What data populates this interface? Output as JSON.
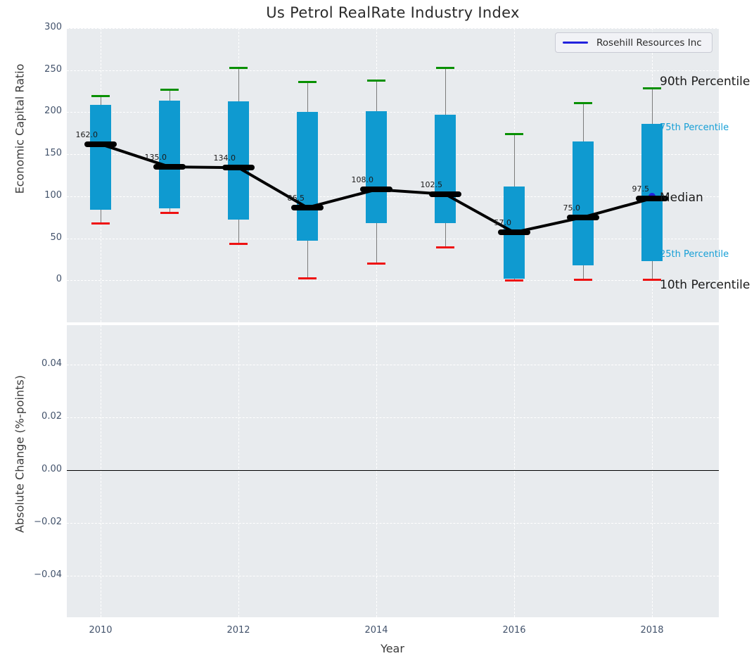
{
  "title": "Us Petrol RealRate Industry Index",
  "legend": {
    "label": "Rosehill Resources Inc"
  },
  "colors": {
    "axes_background": "#e8ebee",
    "grid": "#ffffff",
    "bar": "#0f9ad0",
    "whisker": "#7b7b7b",
    "cap_high": "#089000",
    "cap_low": "#ee1111",
    "median": "#000000",
    "rosehill_blue": "#2222dd",
    "tick_text": "#42526b",
    "cyan_label": "#169fd6",
    "dark_label": "#1a1a1a"
  },
  "chart_data": [
    {
      "type": "bar",
      "subtype": "percentile-box-bars-with-median-line",
      "title": "Us Petrol RealRate Industry Index",
      "ylabel": "Economic Capital Ratio",
      "ylim": [
        -50,
        300
      ],
      "grid": true,
      "legend_position": "upper right",
      "x": [
        2010,
        2011,
        2012,
        2013,
        2014,
        2015,
        2016,
        2017,
        2018
      ],
      "series": [
        {
          "name": "90th Percentile",
          "values": [
            219,
            227,
            253,
            236,
            238,
            253,
            174,
            211,
            228
          ]
        },
        {
          "name": "75th Percentile",
          "values": [
            209,
            214,
            213,
            200,
            201,
            197,
            112,
            165,
            186
          ]
        },
        {
          "name": "Median",
          "values": [
            162,
            135,
            134,
            86.5,
            108,
            102.5,
            57,
            75,
            97.5
          ]
        },
        {
          "name": "25th Percentile",
          "values": [
            84,
            86,
            72,
            47,
            68,
            68,
            2,
            18,
            23
          ]
        },
        {
          "name": "10th Percentile",
          "values": [
            68,
            80,
            43,
            2,
            20,
            39,
            0,
            1,
            1
          ]
        }
      ],
      "median_labels": [
        "162.0",
        "135.0",
        "134.0",
        "86.5",
        "108.0",
        "102.5",
        "57.0",
        "75.0",
        "97.5"
      ],
      "rosehill_point": {
        "x": 2018,
        "y": 100
      },
      "yticks": [
        {
          "v": 300,
          "label": "300"
        },
        {
          "v": 250,
          "label": "250"
        },
        {
          "v": 200,
          "label": "200"
        },
        {
          "v": 150,
          "label": "150"
        },
        {
          "v": 100,
          "label": "100"
        },
        {
          "v": 50,
          "label": "50"
        },
        {
          "v": 0,
          "label": "0"
        }
      ],
      "percentile_labels": [
        {
          "text": "90th Percentile",
          "style": "lg",
          "value": 228,
          "dy": -9
        },
        {
          "text": "75th Percentile",
          "style": "sm",
          "value": 186,
          "dy": 7
        },
        {
          "text": "Median",
          "style": "lg",
          "value": 97.5,
          "dy": 0
        },
        {
          "text": "25th Percentile",
          "style": "sm",
          "value": 23,
          "dy": -8
        },
        {
          "text": "10th Percentile",
          "style": "lg",
          "value": 1,
          "dy": 9
        }
      ]
    },
    {
      "type": "line",
      "ylabel": "Absolute Change (%-points)",
      "xlabel": "Year",
      "ylim": [
        -0.0556,
        0.0548
      ],
      "grid": true,
      "zero_line": 0,
      "series": [],
      "yticks": [
        {
          "v": 0.04,
          "label": "0.04"
        },
        {
          "v": 0.02,
          "label": "0.02"
        },
        {
          "v": 0.0,
          "label": "0.00"
        },
        {
          "v": -0.02,
          "label": "−0.02"
        },
        {
          "v": -0.04,
          "label": "−0.04"
        }
      ],
      "xticks": [
        {
          "v": 2010,
          "label": "2010"
        },
        {
          "v": 2012,
          "label": "2012"
        },
        {
          "v": 2014,
          "label": "2014"
        },
        {
          "v": 2016,
          "label": "2016"
        },
        {
          "v": 2018,
          "label": "2018"
        }
      ]
    }
  ]
}
